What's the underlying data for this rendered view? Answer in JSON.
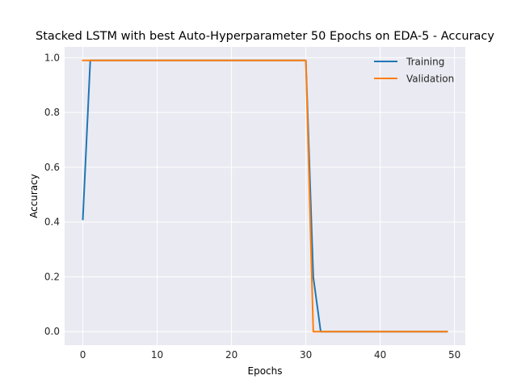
{
  "chart_data": {
    "type": "line",
    "title": "Stacked LSTM with best Auto-Hyperparameter 50 Epochs on EDA-5 - Accuracy",
    "xlabel": "Epochs",
    "ylabel": "Accuracy",
    "xlim": [
      -2.45,
      51.45
    ],
    "ylim": [
      -0.0495,
      1.0395
    ],
    "xticks": [
      0,
      10,
      20,
      30,
      40,
      50
    ],
    "yticks": [
      0.0,
      0.2,
      0.4,
      0.6,
      0.8,
      1.0
    ],
    "xtick_labels": [
      "0",
      "10",
      "20",
      "30",
      "40",
      "50"
    ],
    "ytick_labels": [
      "0.0",
      "0.2",
      "0.4",
      "0.6",
      "0.8",
      "1.0"
    ],
    "grid": true,
    "legend_position": "top-right",
    "x": [
      0,
      1,
      2,
      3,
      4,
      5,
      6,
      7,
      8,
      9,
      10,
      11,
      12,
      13,
      14,
      15,
      16,
      17,
      18,
      19,
      20,
      21,
      22,
      23,
      24,
      25,
      26,
      27,
      28,
      29,
      30,
      31,
      32,
      33,
      34,
      35,
      36,
      37,
      38,
      39,
      40,
      41,
      42,
      43,
      44,
      45,
      46,
      47,
      48,
      49
    ],
    "series": [
      {
        "name": "Training",
        "color": "#1f77b4",
        "values": [
          0.41,
          0.99,
          0.99,
          0.99,
          0.99,
          0.99,
          0.99,
          0.99,
          0.99,
          0.99,
          0.99,
          0.99,
          0.99,
          0.99,
          0.99,
          0.99,
          0.99,
          0.99,
          0.99,
          0.99,
          0.99,
          0.99,
          0.99,
          0.99,
          0.99,
          0.99,
          0.99,
          0.99,
          0.99,
          0.99,
          0.99,
          0.2,
          0.0,
          0.0,
          0.0,
          0.0,
          0.0,
          0.0,
          0.0,
          0.0,
          0.0,
          0.0,
          0.0,
          0.0,
          0.0,
          0.0,
          0.0,
          0.0,
          0.0,
          0.0
        ]
      },
      {
        "name": "Validation",
        "color": "#ff7f0e",
        "values": [
          0.99,
          0.99,
          0.99,
          0.99,
          0.99,
          0.99,
          0.99,
          0.99,
          0.99,
          0.99,
          0.99,
          0.99,
          0.99,
          0.99,
          0.99,
          0.99,
          0.99,
          0.99,
          0.99,
          0.99,
          0.99,
          0.99,
          0.99,
          0.99,
          0.99,
          0.99,
          0.99,
          0.99,
          0.99,
          0.99,
          0.99,
          0.0,
          0.0,
          0.0,
          0.0,
          0.0,
          0.0,
          0.0,
          0.0,
          0.0,
          0.0,
          0.0,
          0.0,
          0.0,
          0.0,
          0.0,
          0.0,
          0.0,
          0.0,
          0.0
        ]
      }
    ],
    "background_color": "#eaeaf2",
    "grid_color": "#ffffff"
  }
}
